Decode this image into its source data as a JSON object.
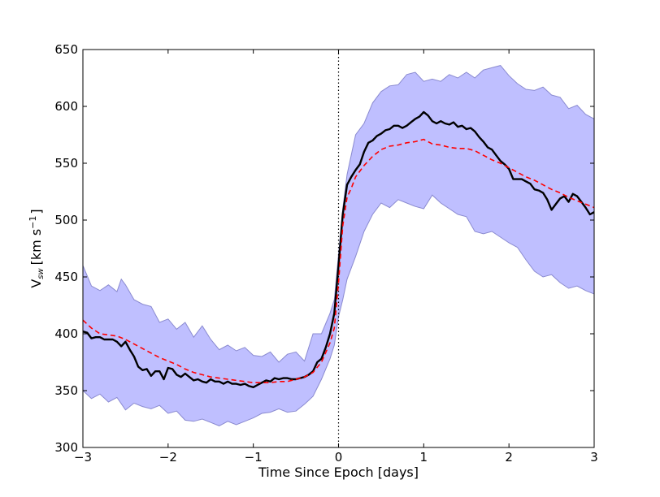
{
  "chart_data": {
    "type": "line",
    "xlabel": "Time Since Epoch [days]",
    "ylabel_main": "V",
    "ylabel_sub": "sw",
    "ylabel_units": "[km s",
    "ylabel_exp": "−1",
    "ylabel_close": "]",
    "xlim": [
      -3,
      3
    ],
    "ylim": [
      300,
      650
    ],
    "x_ticks": [
      -3,
      -2,
      -1,
      0,
      1,
      2,
      3
    ],
    "x_tick_labels": [
      "−3",
      "−2",
      "−1",
      "0",
      "1",
      "2",
      "3"
    ],
    "y_ticks": [
      300,
      350,
      400,
      450,
      500,
      550,
      600,
      650
    ],
    "y_tick_labels": [
      "300",
      "350",
      "400",
      "450",
      "500",
      "550",
      "600",
      "650"
    ],
    "grid": false,
    "vline_x": 0,
    "colors": {
      "band": "#bfbfff",
      "band_edge": "#8a8ad0",
      "mean": "#000000",
      "model": "#ff0000",
      "vline": "#000000"
    },
    "band_upper": [
      [
        -3.0,
        460
      ],
      [
        -2.9,
        442
      ],
      [
        -2.8,
        438
      ],
      [
        -2.7,
        443
      ],
      [
        -2.6,
        437
      ],
      [
        -2.55,
        448
      ],
      [
        -2.5,
        443
      ],
      [
        -2.4,
        430
      ],
      [
        -2.3,
        426
      ],
      [
        -2.2,
        424
      ],
      [
        -2.1,
        410
      ],
      [
        -2.0,
        413
      ],
      [
        -1.9,
        404
      ],
      [
        -1.8,
        410
      ],
      [
        -1.7,
        397
      ],
      [
        -1.6,
        407
      ],
      [
        -1.5,
        395
      ],
      [
        -1.4,
        386
      ],
      [
        -1.3,
        390
      ],
      [
        -1.2,
        385
      ],
      [
        -1.1,
        388
      ],
      [
        -1.0,
        381
      ],
      [
        -0.9,
        380
      ],
      [
        -0.8,
        384
      ],
      [
        -0.7,
        375
      ],
      [
        -0.6,
        382
      ],
      [
        -0.5,
        384
      ],
      [
        -0.4,
        376
      ],
      [
        -0.3,
        400
      ],
      [
        -0.2,
        400
      ],
      [
        -0.1,
        418
      ],
      [
        -0.05,
        430
      ],
      [
        0.0,
        470
      ],
      [
        0.05,
        510
      ],
      [
        0.1,
        540
      ],
      [
        0.2,
        575
      ],
      [
        0.3,
        585
      ],
      [
        0.4,
        603
      ],
      [
        0.5,
        613
      ],
      [
        0.6,
        618
      ],
      [
        0.7,
        619
      ],
      [
        0.8,
        628
      ],
      [
        0.9,
        630
      ],
      [
        1.0,
        622
      ],
      [
        1.1,
        624
      ],
      [
        1.2,
        622
      ],
      [
        1.3,
        628
      ],
      [
        1.4,
        625
      ],
      [
        1.5,
        630
      ],
      [
        1.6,
        625
      ],
      [
        1.7,
        632
      ],
      [
        1.8,
        634
      ],
      [
        1.9,
        636
      ],
      [
        2.0,
        627
      ],
      [
        2.1,
        620
      ],
      [
        2.2,
        615
      ],
      [
        2.3,
        614
      ],
      [
        2.4,
        617
      ],
      [
        2.5,
        610
      ],
      [
        2.6,
        608
      ],
      [
        2.7,
        598
      ],
      [
        2.8,
        601
      ],
      [
        2.9,
        593
      ],
      [
        3.0,
        589
      ]
    ],
    "band_lower": [
      [
        -3.0,
        350
      ],
      [
        -2.9,
        343
      ],
      [
        -2.8,
        347
      ],
      [
        -2.7,
        340
      ],
      [
        -2.6,
        344
      ],
      [
        -2.5,
        333
      ],
      [
        -2.4,
        339
      ],
      [
        -2.3,
        336
      ],
      [
        -2.2,
        334
      ],
      [
        -2.1,
        337
      ],
      [
        -2.0,
        330
      ],
      [
        -1.9,
        332
      ],
      [
        -1.8,
        324
      ],
      [
        -1.7,
        323
      ],
      [
        -1.6,
        325
      ],
      [
        -1.5,
        322
      ],
      [
        -1.4,
        319
      ],
      [
        -1.3,
        323
      ],
      [
        -1.2,
        320
      ],
      [
        -1.1,
        323
      ],
      [
        -1.0,
        326
      ],
      [
        -0.9,
        330
      ],
      [
        -0.8,
        331
      ],
      [
        -0.7,
        334
      ],
      [
        -0.6,
        331
      ],
      [
        -0.5,
        332
      ],
      [
        -0.4,
        338
      ],
      [
        -0.3,
        345
      ],
      [
        -0.2,
        360
      ],
      [
        -0.1,
        378
      ],
      [
        -0.05,
        390
      ],
      [
        0.0,
        415
      ],
      [
        0.05,
        430
      ],
      [
        0.1,
        448
      ],
      [
        0.2,
        468
      ],
      [
        0.3,
        490
      ],
      [
        0.4,
        505
      ],
      [
        0.5,
        515
      ],
      [
        0.6,
        511
      ],
      [
        0.7,
        518
      ],
      [
        0.8,
        515
      ],
      [
        0.9,
        512
      ],
      [
        1.0,
        510
      ],
      [
        1.1,
        522
      ],
      [
        1.2,
        515
      ],
      [
        1.3,
        510
      ],
      [
        1.4,
        505
      ],
      [
        1.5,
        503
      ],
      [
        1.6,
        490
      ],
      [
        1.7,
        488
      ],
      [
        1.8,
        490
      ],
      [
        1.9,
        485
      ],
      [
        2.0,
        480
      ],
      [
        2.1,
        476
      ],
      [
        2.2,
        465
      ],
      [
        2.3,
        455
      ],
      [
        2.4,
        450
      ],
      [
        2.5,
        452
      ],
      [
        2.6,
        445
      ],
      [
        2.7,
        440
      ],
      [
        2.8,
        442
      ],
      [
        2.9,
        438
      ],
      [
        3.0,
        435
      ]
    ],
    "series": [
      {
        "style": "solid-black",
        "points": [
          [
            -3.0,
            402
          ],
          [
            -2.95,
            401
          ],
          [
            -2.9,
            396
          ],
          [
            -2.85,
            397
          ],
          [
            -2.8,
            397
          ],
          [
            -2.75,
            395
          ],
          [
            -2.7,
            395
          ],
          [
            -2.65,
            395
          ],
          [
            -2.6,
            393
          ],
          [
            -2.55,
            389
          ],
          [
            -2.5,
            393
          ],
          [
            -2.45,
            386
          ],
          [
            -2.4,
            380
          ],
          [
            -2.35,
            371
          ],
          [
            -2.3,
            368
          ],
          [
            -2.25,
            369
          ],
          [
            -2.2,
            363
          ],
          [
            -2.15,
            367
          ],
          [
            -2.1,
            367
          ],
          [
            -2.05,
            360
          ],
          [
            -2.0,
            370
          ],
          [
            -1.95,
            369
          ],
          [
            -1.9,
            364
          ],
          [
            -1.85,
            362
          ],
          [
            -1.8,
            365
          ],
          [
            -1.75,
            362
          ],
          [
            -1.7,
            359
          ],
          [
            -1.65,
            360
          ],
          [
            -1.6,
            358
          ],
          [
            -1.55,
            357
          ],
          [
            -1.5,
            360
          ],
          [
            -1.45,
            358
          ],
          [
            -1.4,
            358
          ],
          [
            -1.35,
            356
          ],
          [
            -1.3,
            358
          ],
          [
            -1.25,
            356
          ],
          [
            -1.2,
            356
          ],
          [
            -1.15,
            355
          ],
          [
            -1.1,
            356
          ],
          [
            -1.05,
            354
          ],
          [
            -1.0,
            353
          ],
          [
            -0.95,
            355
          ],
          [
            -0.9,
            357
          ],
          [
            -0.85,
            359
          ],
          [
            -0.8,
            358
          ],
          [
            -0.75,
            361
          ],
          [
            -0.7,
            360
          ],
          [
            -0.65,
            361
          ],
          [
            -0.6,
            361
          ],
          [
            -0.55,
            360
          ],
          [
            -0.5,
            360
          ],
          [
            -0.45,
            361
          ],
          [
            -0.4,
            362
          ],
          [
            -0.35,
            364
          ],
          [
            -0.3,
            367
          ],
          [
            -0.25,
            375
          ],
          [
            -0.2,
            378
          ],
          [
            -0.15,
            388
          ],
          [
            -0.1,
            400
          ],
          [
            -0.05,
            418
          ],
          [
            0.0,
            460
          ],
          [
            0.05,
            505
          ],
          [
            0.1,
            531
          ],
          [
            0.15,
            538
          ],
          [
            0.2,
            544
          ],
          [
            0.25,
            549
          ],
          [
            0.3,
            560
          ],
          [
            0.35,
            568
          ],
          [
            0.4,
            570
          ],
          [
            0.45,
            574
          ],
          [
            0.5,
            576
          ],
          [
            0.55,
            579
          ],
          [
            0.6,
            580
          ],
          [
            0.65,
            583
          ],
          [
            0.7,
            583
          ],
          [
            0.75,
            581
          ],
          [
            0.8,
            583
          ],
          [
            0.85,
            586
          ],
          [
            0.9,
            589
          ],
          [
            0.95,
            591
          ],
          [
            1.0,
            595
          ],
          [
            1.05,
            592
          ],
          [
            1.1,
            587
          ],
          [
            1.15,
            585
          ],
          [
            1.2,
            587
          ],
          [
            1.25,
            585
          ],
          [
            1.3,
            584
          ],
          [
            1.35,
            586
          ],
          [
            1.4,
            582
          ],
          [
            1.45,
            583
          ],
          [
            1.5,
            580
          ],
          [
            1.55,
            581
          ],
          [
            1.6,
            578
          ],
          [
            1.65,
            573
          ],
          [
            1.7,
            569
          ],
          [
            1.75,
            564
          ],
          [
            1.8,
            562
          ],
          [
            1.85,
            557
          ],
          [
            1.9,
            552
          ],
          [
            1.95,
            549
          ],
          [
            2.0,
            545
          ],
          [
            2.05,
            536
          ],
          [
            2.1,
            536
          ],
          [
            2.15,
            536
          ],
          [
            2.2,
            534
          ],
          [
            2.25,
            532
          ],
          [
            2.3,
            527
          ],
          [
            2.35,
            526
          ],
          [
            2.4,
            524
          ],
          [
            2.45,
            518
          ],
          [
            2.5,
            509
          ],
          [
            2.55,
            514
          ],
          [
            2.6,
            519
          ],
          [
            2.65,
            521
          ],
          [
            2.7,
            516
          ],
          [
            2.75,
            523
          ],
          [
            2.8,
            521
          ],
          [
            2.85,
            516
          ],
          [
            2.9,
            511
          ],
          [
            2.95,
            505
          ],
          [
            3.0,
            507
          ]
        ]
      },
      {
        "style": "dashed-red",
        "points": [
          [
            -3.0,
            412
          ],
          [
            -2.9,
            405
          ],
          [
            -2.8,
            400
          ],
          [
            -2.7,
            399
          ],
          [
            -2.6,
            398
          ],
          [
            -2.5,
            395
          ],
          [
            -2.4,
            391
          ],
          [
            -2.3,
            387
          ],
          [
            -2.2,
            383
          ],
          [
            -2.1,
            379
          ],
          [
            -2.0,
            376
          ],
          [
            -1.9,
            373
          ],
          [
            -1.8,
            369
          ],
          [
            -1.7,
            366
          ],
          [
            -1.6,
            364
          ],
          [
            -1.5,
            362
          ],
          [
            -1.4,
            361
          ],
          [
            -1.3,
            360
          ],
          [
            -1.2,
            359
          ],
          [
            -1.1,
            358
          ],
          [
            -1.0,
            357
          ],
          [
            -0.9,
            357
          ],
          [
            -0.8,
            357
          ],
          [
            -0.7,
            358
          ],
          [
            -0.6,
            358
          ],
          [
            -0.5,
            360
          ],
          [
            -0.4,
            362
          ],
          [
            -0.3,
            366
          ],
          [
            -0.2,
            375
          ],
          [
            -0.1,
            392
          ],
          [
            -0.05,
            405
          ],
          [
            0.0,
            445
          ],
          [
            0.05,
            495
          ],
          [
            0.1,
            520
          ],
          [
            0.15,
            528
          ],
          [
            0.2,
            538
          ],
          [
            0.3,
            548
          ],
          [
            0.4,
            556
          ],
          [
            0.5,
            562
          ],
          [
            0.6,
            565
          ],
          [
            0.7,
            566
          ],
          [
            0.8,
            568
          ],
          [
            0.9,
            569
          ],
          [
            1.0,
            571
          ],
          [
            1.1,
            567
          ],
          [
            1.2,
            566
          ],
          [
            1.3,
            564
          ],
          [
            1.4,
            563
          ],
          [
            1.5,
            563
          ],
          [
            1.6,
            561
          ],
          [
            1.7,
            557
          ],
          [
            1.8,
            553
          ],
          [
            1.9,
            550
          ],
          [
            2.0,
            546
          ],
          [
            2.1,
            542
          ],
          [
            2.2,
            538
          ],
          [
            2.3,
            535
          ],
          [
            2.4,
            531
          ],
          [
            2.5,
            527
          ],
          [
            2.6,
            524
          ],
          [
            2.7,
            520
          ],
          [
            2.8,
            517
          ],
          [
            2.9,
            514
          ],
          [
            3.0,
            511
          ]
        ]
      }
    ]
  }
}
